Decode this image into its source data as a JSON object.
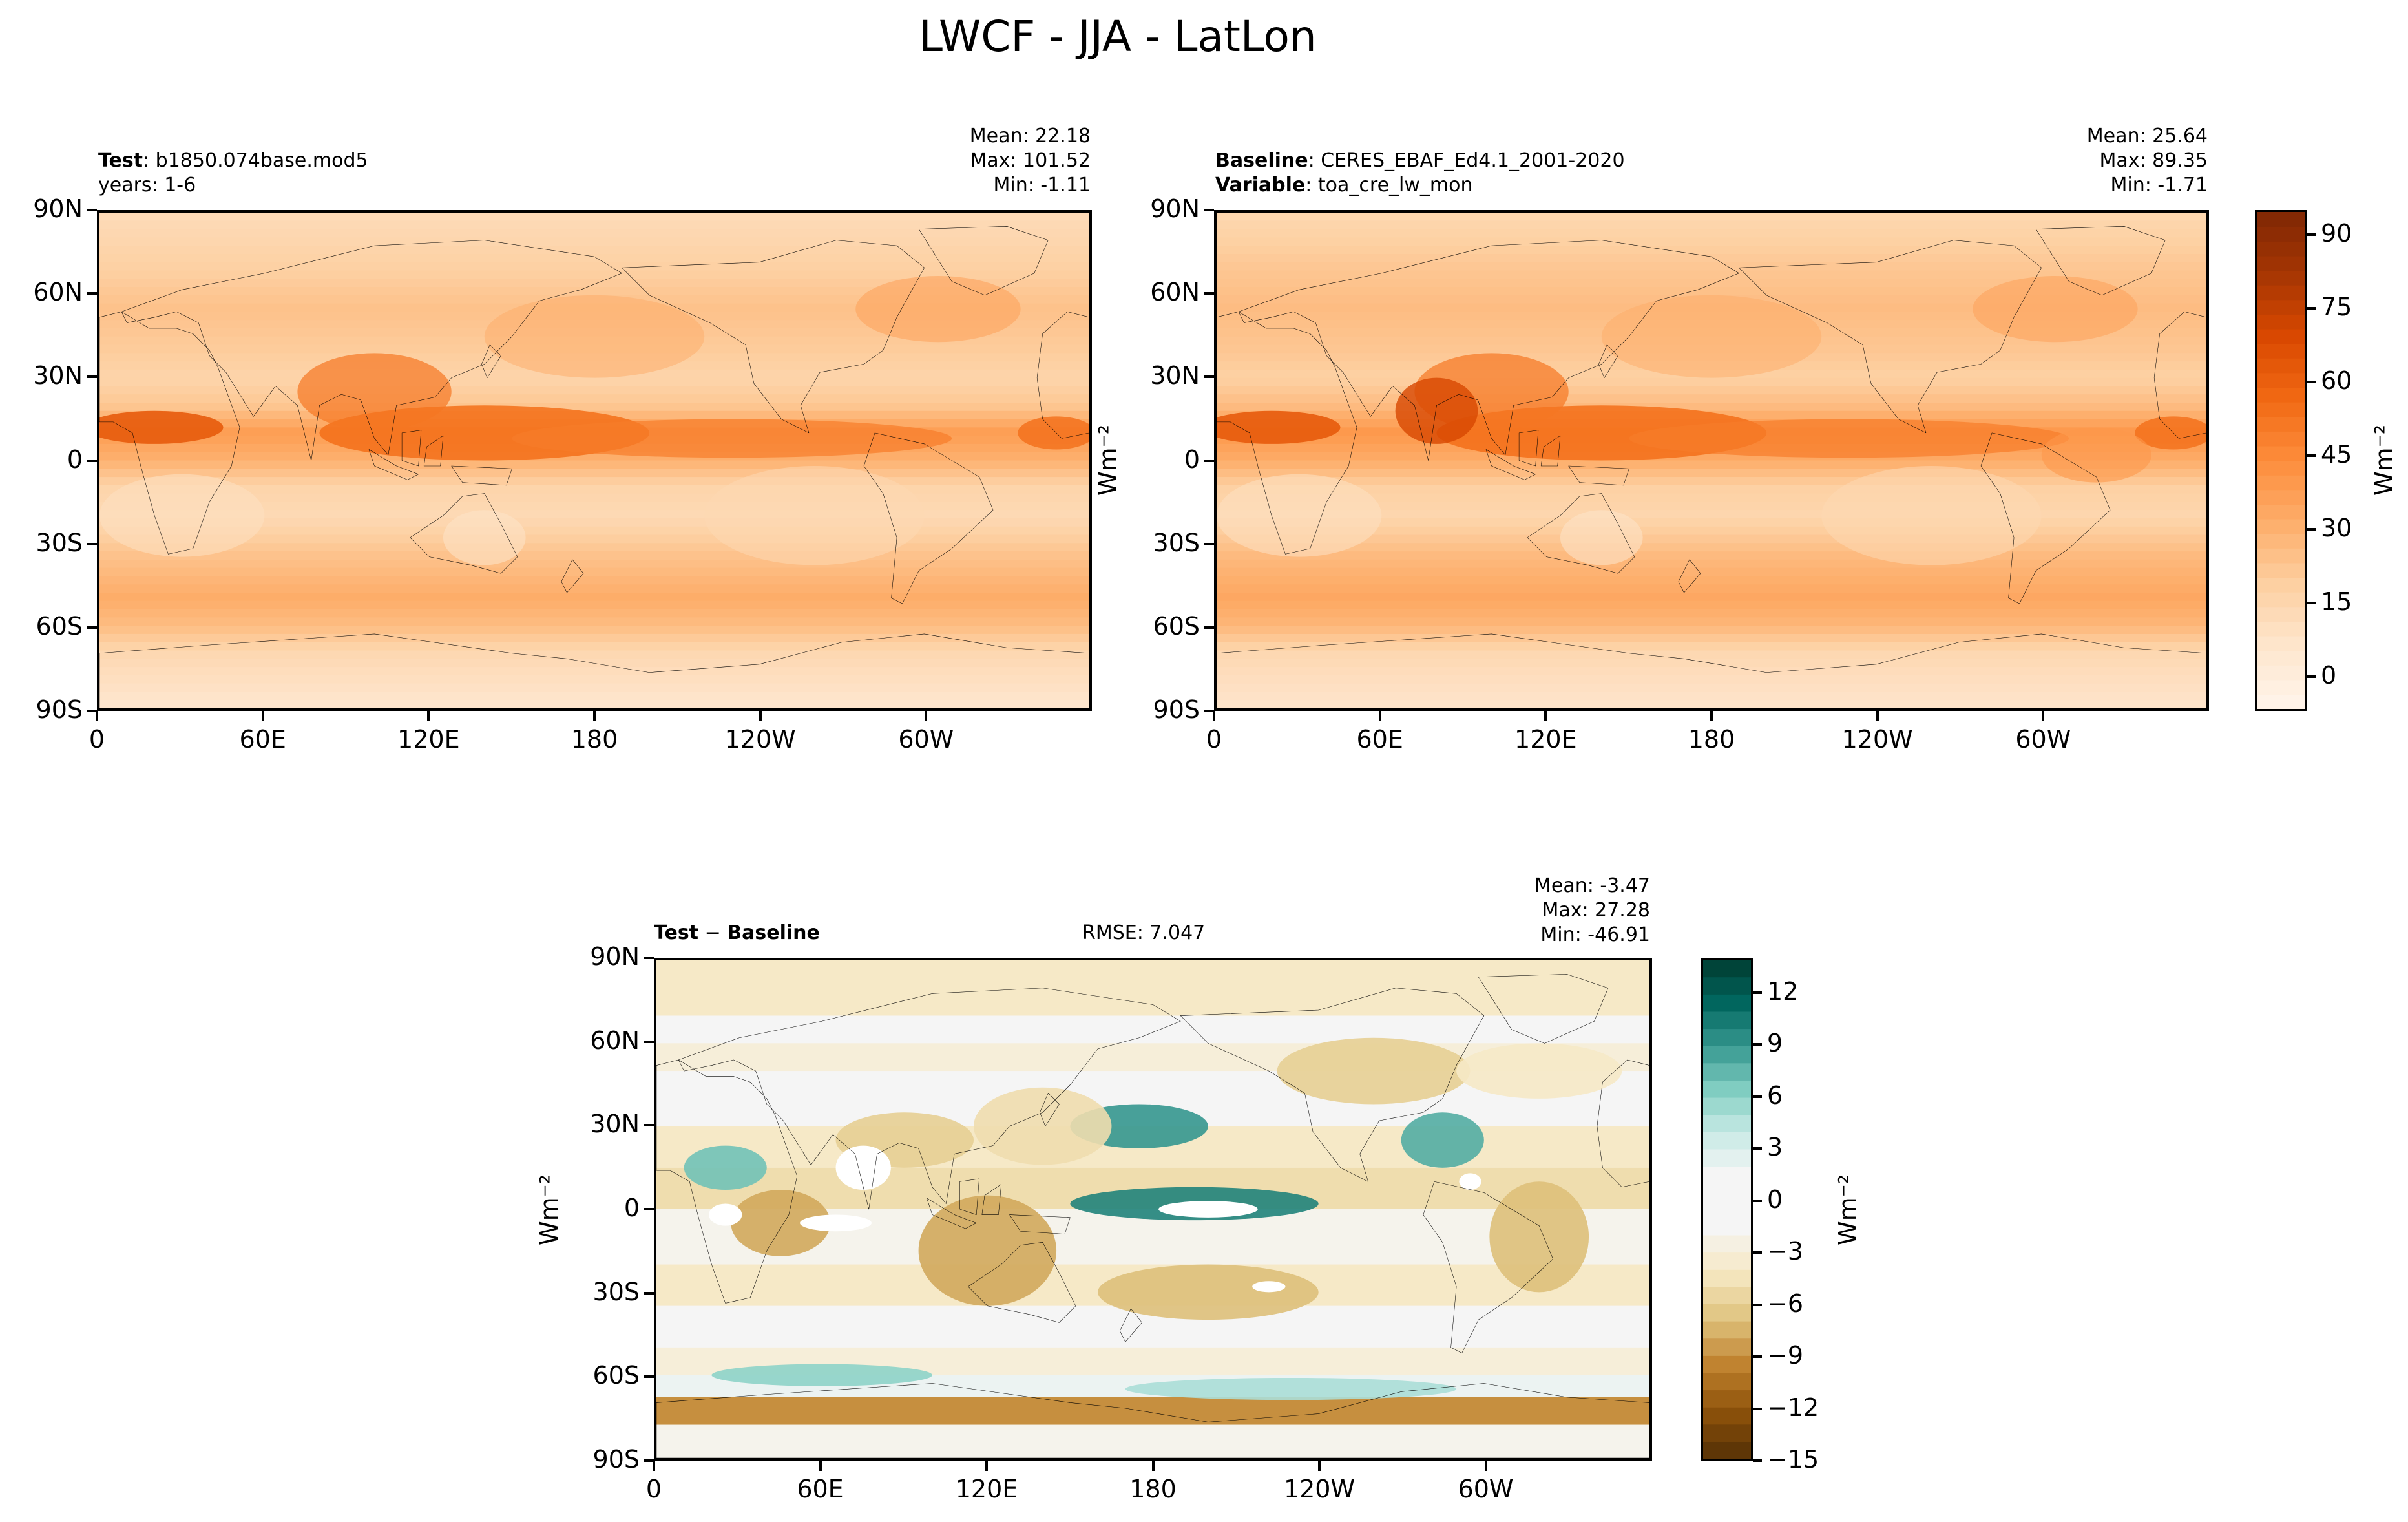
{
  "figure_title": "LWCF - JJA - LatLon",
  "panels": {
    "test": {
      "label_bold": "Test",
      "label_rest": ": b1850.074base.mod5",
      "sub_line": "years: 1-6",
      "stats": {
        "mean": "Mean: 22.18",
        "max": "Max: 101.52",
        "min": "Min: -1.11"
      }
    },
    "baseline": {
      "label_bold": "Baseline",
      "label_rest": ": CERES_EBAF_Ed4.1_2001-2020",
      "sub_bold": "Variable",
      "sub_rest": ": toa_cre_lw_mon",
      "stats": {
        "mean": "Mean: 25.64",
        "max": "Max: 89.35",
        "min": "Min: -1.71"
      }
    },
    "diff": {
      "label_a": "Test",
      "label_minus": "−",
      "label_b": "Baseline",
      "rmse": "RMSE: 7.047",
      "stats": {
        "mean": "Mean: -3.47",
        "max": "Max: 27.28",
        "min": "Min: -46.91"
      }
    }
  },
  "colorbars": {
    "main": {
      "label": "Wm⁻²",
      "ticks": [
        "90",
        "75",
        "60",
        "45",
        "30",
        "15",
        "0"
      ]
    },
    "diff": {
      "label": "Wm⁻²",
      "ticks": [
        "12",
        "9",
        "6",
        "3",
        "0",
        "−3",
        "−6",
        "−9",
        "−12",
        "−15"
      ]
    }
  },
  "chart_data": [
    {
      "type": "heatmap",
      "name": "Test",
      "x_ticks": [
        "0",
        "60E",
        "120E",
        "180",
        "120W",
        "60W"
      ],
      "y_ticks": [
        "90N",
        "60N",
        "30N",
        "0",
        "30S",
        "60S",
        "90S"
      ],
      "xlim": [
        0,
        360
      ],
      "ylim": [
        -90,
        90
      ],
      "ylabel": "Wm⁻²",
      "colormap": "Oranges",
      "value_range": [
        -7,
        95
      ],
      "mean": 22.18,
      "max": 101.52,
      "min": -1.11
    },
    {
      "type": "heatmap",
      "name": "Baseline",
      "x_ticks": [
        "0",
        "60E",
        "120E",
        "180",
        "120W",
        "60W"
      ],
      "y_ticks": [
        "90N",
        "60N",
        "30N",
        "0",
        "30S",
        "60S",
        "90S"
      ],
      "xlim": [
        0,
        360
      ],
      "ylim": [
        -90,
        90
      ],
      "colormap": "Oranges",
      "value_range": [
        -7,
        95
      ],
      "mean": 25.64,
      "max": 89.35,
      "min": -1.71
    },
    {
      "type": "heatmap",
      "name": "Test − Baseline",
      "x_ticks": [
        "0",
        "60E",
        "120E",
        "180",
        "120W",
        "60W"
      ],
      "y_ticks": [
        "90N",
        "60N",
        "30N",
        "0",
        "30S",
        "60S",
        "90S"
      ],
      "xlim": [
        0,
        360
      ],
      "ylim": [
        -90,
        90
      ],
      "ylabel": "Wm⁻²",
      "colormap": "BrBG",
      "value_range": [
        -15,
        14
      ],
      "mean": -3.47,
      "max": 27.28,
      "min": -46.91,
      "rmse": 7.047
    }
  ],
  "colors": {
    "oranges": [
      "#fff5eb",
      "#fee6ce",
      "#fdd0a2",
      "#fdae6b",
      "#fd8d3c",
      "#f16913",
      "#d94801",
      "#a63603",
      "#7f2704"
    ],
    "brbg_neg": [
      "#543005",
      "#8c510a",
      "#bf812d",
      "#dfc27d",
      "#f6e8c3"
    ],
    "brbg_pos": [
      "#c7eae5",
      "#80cdc1",
      "#35978f",
      "#01665e",
      "#003c30"
    ],
    "neutral": "#f5f5f5"
  }
}
